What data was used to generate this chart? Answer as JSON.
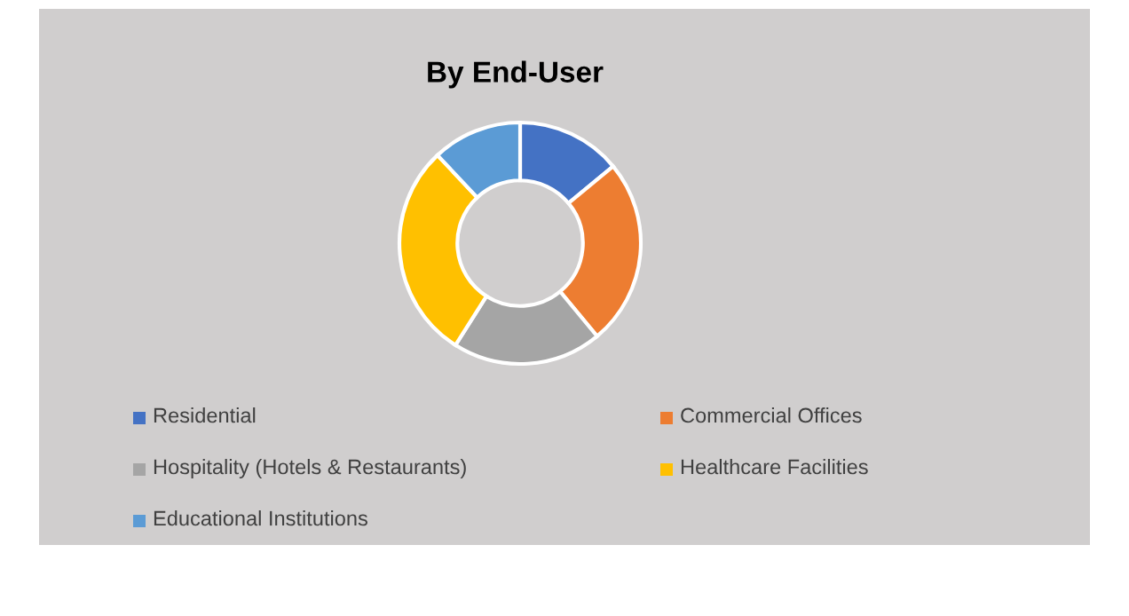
{
  "chart_data": {
    "type": "donut",
    "title": "By End-User",
    "categories": [
      "Residential",
      "Commercial Offices",
      "Hospitality (Hotels & Restaurants)",
      "Healthcare Facilities",
      "Educational Institutions"
    ],
    "values": [
      14,
      25,
      20,
      29,
      12
    ],
    "colors": [
      "#4472c4",
      "#ed7d31",
      "#a5a5a5",
      "#ffc000",
      "#5b9bd5"
    ],
    "legend": "bottom"
  }
}
